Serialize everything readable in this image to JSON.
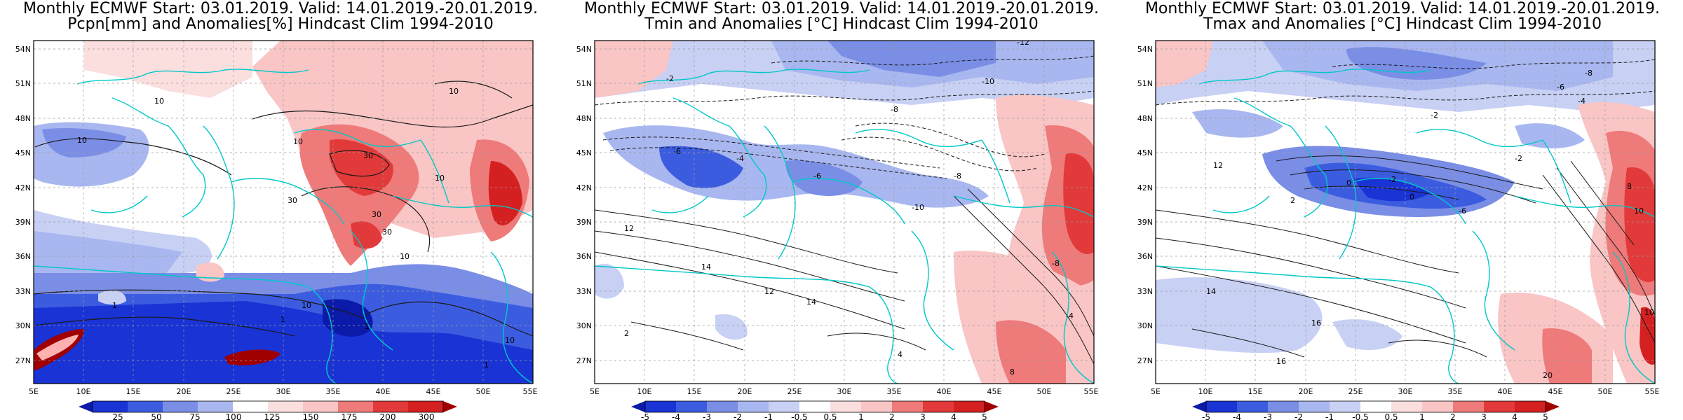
{
  "colors": {
    "coast": "#00c8c8",
    "grid": "#9a9a9a",
    "contour": "#1a1a1a"
  },
  "panels": [
    {
      "id": "precip",
      "title_line1": "Monthly ECMWF Start: 03.01.2019. Valid: 14.01.2019.-20.01.2019.",
      "title_line2": "Pcpn[mm] and Anomalies[%] Hindcast Clim 1994-2010",
      "xticks": [
        "5E",
        "10E",
        "15E",
        "20E",
        "25E",
        "30E",
        "35E",
        "40E",
        "45E",
        "50E",
        "55E"
      ],
      "yticks": [
        "54N",
        "51N",
        "48N",
        "45N",
        "42N",
        "39N",
        "36N",
        "33N",
        "30N",
        "27N"
      ],
      "colorbar": [
        "25",
        "50",
        "75",
        "100",
        "125",
        "150",
        "175",
        "200",
        "300"
      ],
      "contour_labels": [
        "10",
        "10",
        "10",
        "10",
        "30",
        "30",
        "30",
        "30",
        "10",
        "10",
        "1",
        "1",
        "1",
        "10",
        "10",
        "1"
      ]
    },
    {
      "id": "tmin",
      "title_line1": "Monthly ECMWF Start: 03.01.2019. Valid: 14.01.2019.-20.01.2019.",
      "title_line2": "Tmin and Anomalies [°C] Hindcast Clim 1994-2010",
      "xticks": [
        "5E",
        "10E",
        "15E",
        "20E",
        "25E",
        "30E",
        "35E",
        "40E",
        "45E",
        "50E",
        "55E"
      ],
      "yticks": [
        "54N",
        "51N",
        "48N",
        "45N",
        "42N",
        "39N",
        "36N",
        "33N",
        "30N",
        "27N"
      ],
      "colorbar": [
        "-5",
        "-4",
        "-3",
        "-2",
        "-1",
        "-0.5",
        "0.5",
        "1",
        "2",
        "3",
        "4",
        "5"
      ],
      "contour_labels": [
        "-12",
        "-10",
        "-2",
        "-8",
        "-6",
        "-4",
        "-6",
        "-8",
        "-10",
        "12",
        "14",
        "12",
        "14",
        "2",
        "4",
        "8",
        "-8",
        "-4"
      ]
    },
    {
      "id": "tmax",
      "title_line1": "Monthly ECMWF Start: 03.01.2019. Valid: 14.01.2019.-20.01.2019.",
      "title_line2": "Tmax and Anomalies [°C] Hindcast Clim 1994-2010",
      "xticks": [
        "5E",
        "10E",
        "15E",
        "20E",
        "25E",
        "30E",
        "35E",
        "40E",
        "45E",
        "50E",
        "55E"
      ],
      "yticks": [
        "54N",
        "51N",
        "48N",
        "45N",
        "42N",
        "39N",
        "36N",
        "33N",
        "30N",
        "27N"
      ],
      "colorbar": [
        "-5",
        "-4",
        "-3",
        "-2",
        "-1",
        "-0.5",
        "0.5",
        "1",
        "2",
        "3",
        "4",
        "5"
      ],
      "contour_labels": [
        "-8",
        "-6",
        "-4",
        "-2",
        "0",
        "2",
        "-2",
        "0",
        "-2",
        "-6",
        "12",
        "14",
        "16",
        "16",
        "20",
        "10",
        "10",
        "8"
      ]
    }
  ]
}
